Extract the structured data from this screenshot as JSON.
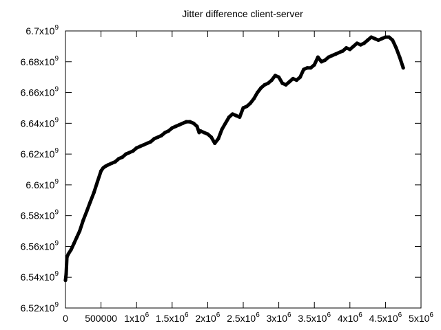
{
  "chart_data": {
    "type": "line",
    "title": "Jitter difference client-server",
    "xlabel": "",
    "ylabel": "",
    "xlim": [
      0,
      5000000
    ],
    "ylim": [
      6520000000,
      6700000000
    ],
    "grid": false,
    "x_ticks": [
      {
        "value": 0,
        "base": "0",
        "exp": ""
      },
      {
        "value": 500000,
        "base": "500000",
        "exp": ""
      },
      {
        "value": 1000000,
        "base": "1x10",
        "exp": "6"
      },
      {
        "value": 1500000,
        "base": "1.5x10",
        "exp": "6"
      },
      {
        "value": 2000000,
        "base": "2x10",
        "exp": "6"
      },
      {
        "value": 2500000,
        "base": "2.5x10",
        "exp": "6"
      },
      {
        "value": 3000000,
        "base": "3x10",
        "exp": "6"
      },
      {
        "value": 3500000,
        "base": "3.5x10",
        "exp": "6"
      },
      {
        "value": 4000000,
        "base": "4x10",
        "exp": "6"
      },
      {
        "value": 4500000,
        "base": "4.5x10",
        "exp": "6"
      },
      {
        "value": 5000000,
        "base": "5x10",
        "exp": "6"
      }
    ],
    "y_ticks": [
      {
        "value": 6520000000,
        "base": "6.52x10",
        "exp": "9"
      },
      {
        "value": 6540000000,
        "base": "6.54x10",
        "exp": "9"
      },
      {
        "value": 6560000000,
        "base": "6.56x10",
        "exp": "9"
      },
      {
        "value": 6580000000,
        "base": "6.58x10",
        "exp": "9"
      },
      {
        "value": 6600000000,
        "base": "6.6x10",
        "exp": "9"
      },
      {
        "value": 6620000000,
        "base": "6.62x10",
        "exp": "9"
      },
      {
        "value": 6640000000,
        "base": "6.64x10",
        "exp": "9"
      },
      {
        "value": 6660000000,
        "base": "6.66x10",
        "exp": "9"
      },
      {
        "value": 6680000000,
        "base": "6.68x10",
        "exp": "9"
      },
      {
        "value": 6700000000,
        "base": "6.7x10",
        "exp": "9"
      }
    ],
    "series": [
      {
        "color": "#000000",
        "x": [
          0,
          10000,
          20000,
          40000,
          80000,
          120000,
          160000,
          200000,
          250000,
          300000,
          350000,
          400000,
          450000,
          500000,
          530000,
          560000,
          600000,
          650000,
          700000,
          750000,
          800000,
          850000,
          900000,
          950000,
          1000000,
          1050000,
          1100000,
          1150000,
          1200000,
          1250000,
          1300000,
          1350000,
          1400000,
          1450000,
          1500000,
          1550000,
          1600000,
          1650000,
          1700000,
          1750000,
          1800000,
          1850000,
          1880000,
          1900000,
          1950000,
          2000000,
          2050000,
          2100000,
          2150000,
          2200000,
          2250000,
          2300000,
          2350000,
          2400000,
          2450000,
          2500000,
          2550000,
          2600000,
          2650000,
          2700000,
          2750000,
          2800000,
          2850000,
          2900000,
          2950000,
          3000000,
          3050000,
          3100000,
          3150000,
          3200000,
          3250000,
          3300000,
          3350000,
          3400000,
          3450000,
          3500000,
          3550000,
          3600000,
          3650000,
          3700000,
          3750000,
          3800000,
          3850000,
          3900000,
          3950000,
          4000000,
          4050000,
          4100000,
          4150000,
          4200000,
          4250000,
          4300000,
          4350000,
          4400000,
          4450000,
          4500000,
          4550000,
          4600000,
          4650000,
          4700000,
          4750000
        ],
        "y": [
          6538000000,
          6542000000,
          6553000000,
          6555000000,
          6558000000,
          6562000000,
          6566000000,
          6570000000,
          6577000000,
          6583000000,
          6589000000,
          6595000000,
          6602000000,
          6609000000,
          6611000000,
          6612000000,
          6613000000,
          6614000000,
          6615000000,
          6617000000,
          6618000000,
          6620000000,
          6621000000,
          6622000000,
          6624000000,
          6625000000,
          6626000000,
          6627000000,
          6628000000,
          6630000000,
          6631000000,
          6632000000,
          6634000000,
          6635000000,
          6637000000,
          6638000000,
          6639000000,
          6640000000,
          6641000000,
          6641000000,
          6640000000,
          6638000000,
          6634000000,
          6635000000,
          6634000000,
          6633000000,
          6631000000,
          6627000000,
          6630000000,
          6636000000,
          6640000000,
          6644000000,
          6646000000,
          6645000000,
          6644000000,
          6650000000,
          6651000000,
          6653000000,
          6656000000,
          6660000000,
          6663000000,
          6665000000,
          6666000000,
          6668000000,
          6671000000,
          6670000000,
          6666000000,
          6665000000,
          6667000000,
          6669000000,
          6668000000,
          6670000000,
          6675000000,
          6676000000,
          6676000000,
          6678000000,
          6683000000,
          6680000000,
          6681000000,
          6683000000,
          6684000000,
          6685000000,
          6686000000,
          6687000000,
          6689000000,
          6688000000,
          6690000000,
          6692000000,
          6691000000,
          6692000000,
          6694000000,
          6696000000,
          6695000000,
          6694000000,
          6695000000,
          6696000000,
          6696000000,
          6694000000,
          6689000000,
          6683000000,
          6676000000
        ]
      }
    ]
  }
}
